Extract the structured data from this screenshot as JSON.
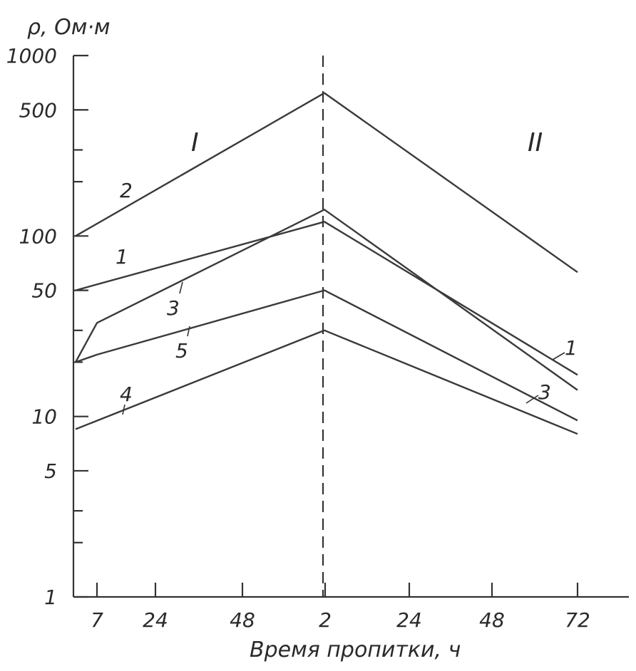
{
  "chart_data": {
    "type": "line",
    "ylabel": "ρ, Ом·м",
    "xlabel": "Время пропитки, ч",
    "yscale": "log",
    "ylim": [
      1,
      1000
    ],
    "y_ticks": [
      1,
      5,
      10,
      50,
      100,
      500,
      1000
    ],
    "y_minor_ticks": [
      2,
      3,
      20,
      30,
      200,
      300
    ],
    "x_tick_labels": [
      "7",
      "24",
      "48",
      "2",
      "24",
      "48",
      "72"
    ],
    "regions": [
      "I",
      "II"
    ],
    "grid": false,
    "series": [
      {
        "name": "1",
        "points": [
          {
            "x": "0",
            "y": 50
          },
          {
            "x": "I-end",
            "y": 120
          },
          {
            "x": "72",
            "y": 17
          }
        ]
      },
      {
        "name": "2",
        "points": [
          {
            "x": "0",
            "y": 100
          },
          {
            "x": "I-end",
            "y": 620
          },
          {
            "x": "72",
            "y": 63
          }
        ]
      },
      {
        "name": "3",
        "points": [
          {
            "x": "0",
            "y": 20
          },
          {
            "x": "7",
            "y": 33
          },
          {
            "x": "I-end",
            "y": 140
          },
          {
            "x": "72",
            "y": 14
          }
        ]
      },
      {
        "name": "4",
        "points": [
          {
            "x": "0",
            "y": 8.5
          },
          {
            "x": "I-end",
            "y": 30
          },
          {
            "x": "72",
            "y": 8
          }
        ]
      },
      {
        "name": "5",
        "points": [
          {
            "x": "0",
            "y": 20
          },
          {
            "x": "7",
            "y": 22
          },
          {
            "x": "I-end",
            "y": 50
          },
          {
            "x": "72",
            "y": 9.5
          }
        ]
      }
    ],
    "series_labels_left": [
      "2",
      "1",
      "3",
      "5",
      "4"
    ],
    "series_labels_right": [
      "1",
      "3"
    ]
  }
}
